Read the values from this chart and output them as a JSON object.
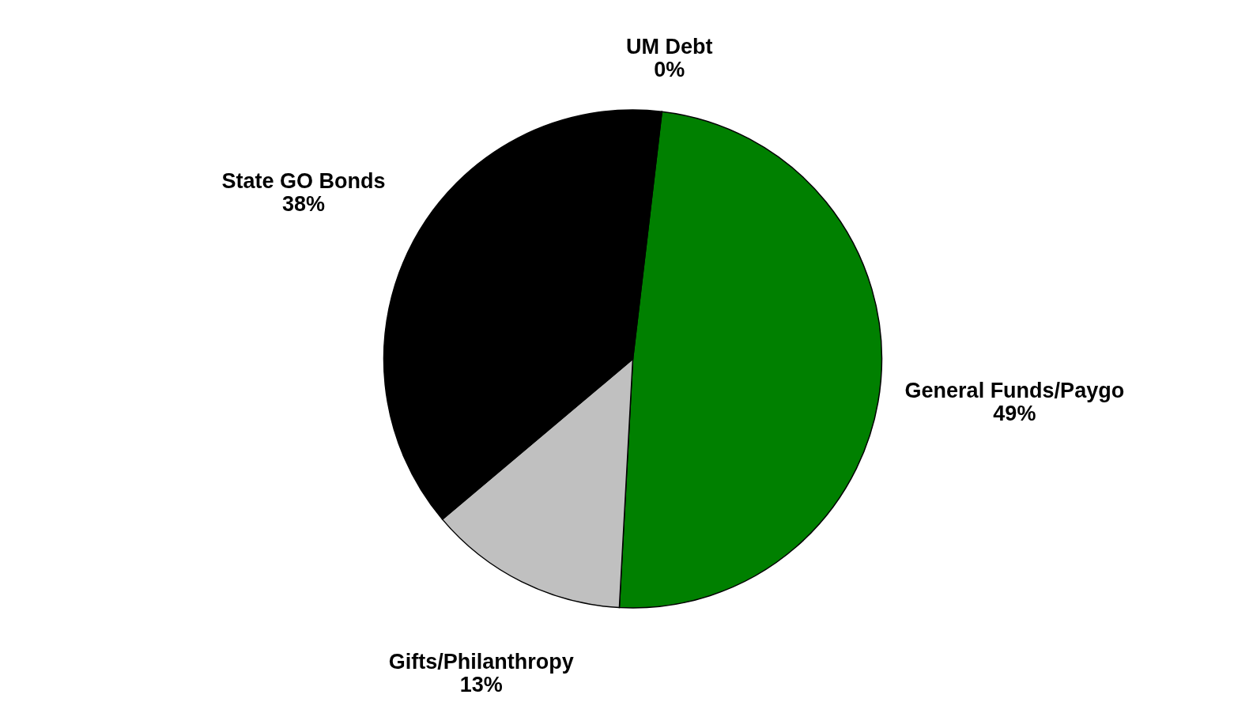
{
  "chart_data": {
    "type": "pie",
    "categories": [
      "UM Debt",
      "General Funds/Paygo",
      "Gifts/Philanthropy",
      "State GO Bonds"
    ],
    "values": [
      0,
      49,
      13,
      38
    ],
    "value_labels": [
      "0%",
      "49%",
      "13%",
      "38%"
    ],
    "colors": [
      "#ffffff",
      "#008000",
      "#c0c0c0",
      "#000000"
    ]
  }
}
